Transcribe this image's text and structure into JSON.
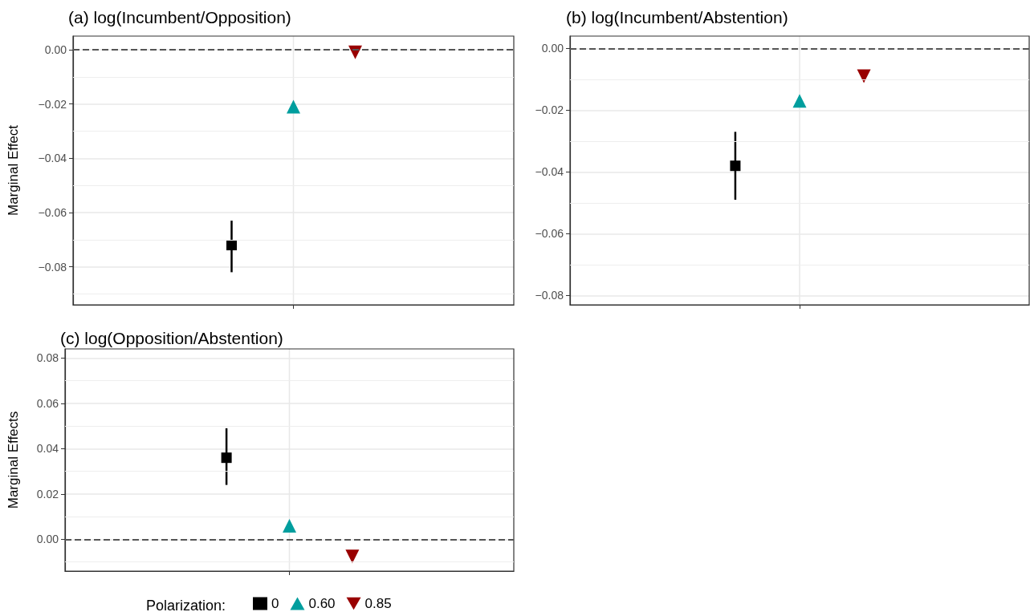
{
  "chart_data": [
    {
      "type": "scatter",
      "title": "(a) log(Incumbent/Opposition)",
      "ylabel": "Marginal Effect",
      "categories": [
        null
      ],
      "ylim": [
        -0.094,
        0.005
      ],
      "yticks": [
        {
          "value": -0.09,
          "label": null
        },
        {
          "value": -0.08,
          "label": "−0.08"
        },
        {
          "value": -0.07,
          "label": null
        },
        {
          "value": -0.06,
          "label": "−0.06"
        },
        {
          "value": -0.05,
          "label": null
        },
        {
          "value": -0.04,
          "label": "−0.04"
        },
        {
          "value": -0.03,
          "label": null
        },
        {
          "value": -0.02,
          "label": "−0.02"
        },
        {
          "value": -0.01,
          "label": null
        },
        {
          "value": 0,
          "label": "0.00"
        }
      ],
      "grid": true,
      "legend": false,
      "series": [
        {
          "color": "#000000",
          "marker": "square",
          "values": [
            -0.072
          ],
          "errors": [
            [
              -0.082,
              -0.063
            ]
          ]
        },
        {
          "color": "#009e9e",
          "marker": "triangle",
          "values": [
            -0.021
          ]
        },
        {
          "color": "#990000",
          "marker": "triangle-down",
          "values": [
            -0.001
          ]
        }
      ],
      "ref_lines": [
        {
          "axis": "y",
          "value": 0,
          "color": "#555555",
          "line_style": "dashed"
        }
      ]
    },
    {
      "type": "scatter",
      "title": "(b) log(Incumbent/Abstention)",
      "categories": [
        null
      ],
      "ylim": [
        -0.083,
        0.004
      ],
      "yticks": [
        {
          "value": -0.08,
          "label": "−0.08"
        },
        {
          "value": -0.07,
          "label": null
        },
        {
          "value": -0.06,
          "label": "−0.06"
        },
        {
          "value": -0.05,
          "label": null
        },
        {
          "value": -0.04,
          "label": "−0.04"
        },
        {
          "value": -0.03,
          "label": null
        },
        {
          "value": -0.02,
          "label": "−0.02"
        },
        {
          "value": -0.01,
          "label": null
        },
        {
          "value": 0,
          "label": "0.00"
        }
      ],
      "grid": true,
      "legend": false,
      "series": [
        {
          "color": "#000000",
          "marker": "square",
          "values": [
            -0.038
          ],
          "errors": [
            [
              -0.049,
              -0.027
            ]
          ]
        },
        {
          "color": "#009e9e",
          "marker": "triangle",
          "values": [
            -0.017
          ]
        },
        {
          "color": "#990000",
          "marker": "triangle-down",
          "values": [
            -0.009
          ]
        }
      ],
      "ref_lines": [
        {
          "axis": "y",
          "value": 0,
          "color": "#555555",
          "line_style": "dashed"
        }
      ]
    },
    {
      "type": "scatter",
      "title": "(c) log(Opposition/Abstention)",
      "ylabel": "Marginal Effects",
      "legend_title": "Polarization:",
      "categories": [
        null
      ],
      "ylim": [
        -0.014,
        0.084
      ],
      "yticks": [
        {
          "value": -0.01,
          "label": null
        },
        {
          "value": 0,
          "label": "0.00"
        },
        {
          "value": 0.01,
          "label": null
        },
        {
          "value": 0.02,
          "label": "0.02"
        },
        {
          "value": 0.03,
          "label": null
        },
        {
          "value": 0.04,
          "label": "0.04"
        },
        {
          "value": 0.05,
          "label": null
        },
        {
          "value": 0.06,
          "label": "0.06"
        },
        {
          "value": 0.07,
          "label": null
        },
        {
          "value": 0.08,
          "label": "0.08"
        }
      ],
      "grid": true,
      "legend": "bottom",
      "series": [
        {
          "name": "0",
          "color": "#000000",
          "marker": "square",
          "values": [
            0.036
          ],
          "errors": [
            [
              0.024,
              0.049
            ]
          ]
        },
        {
          "name": "0.60",
          "color": "#009e9e",
          "marker": "triangle",
          "values": [
            0.006
          ]
        },
        {
          "name": "0.85",
          "color": "#990000",
          "marker": "triangle-down",
          "values": [
            -0.0075
          ]
        }
      ],
      "ref_lines": [
        {
          "axis": "y",
          "value": 0,
          "color": "#555555",
          "line_style": "dashed"
        }
      ]
    }
  ]
}
